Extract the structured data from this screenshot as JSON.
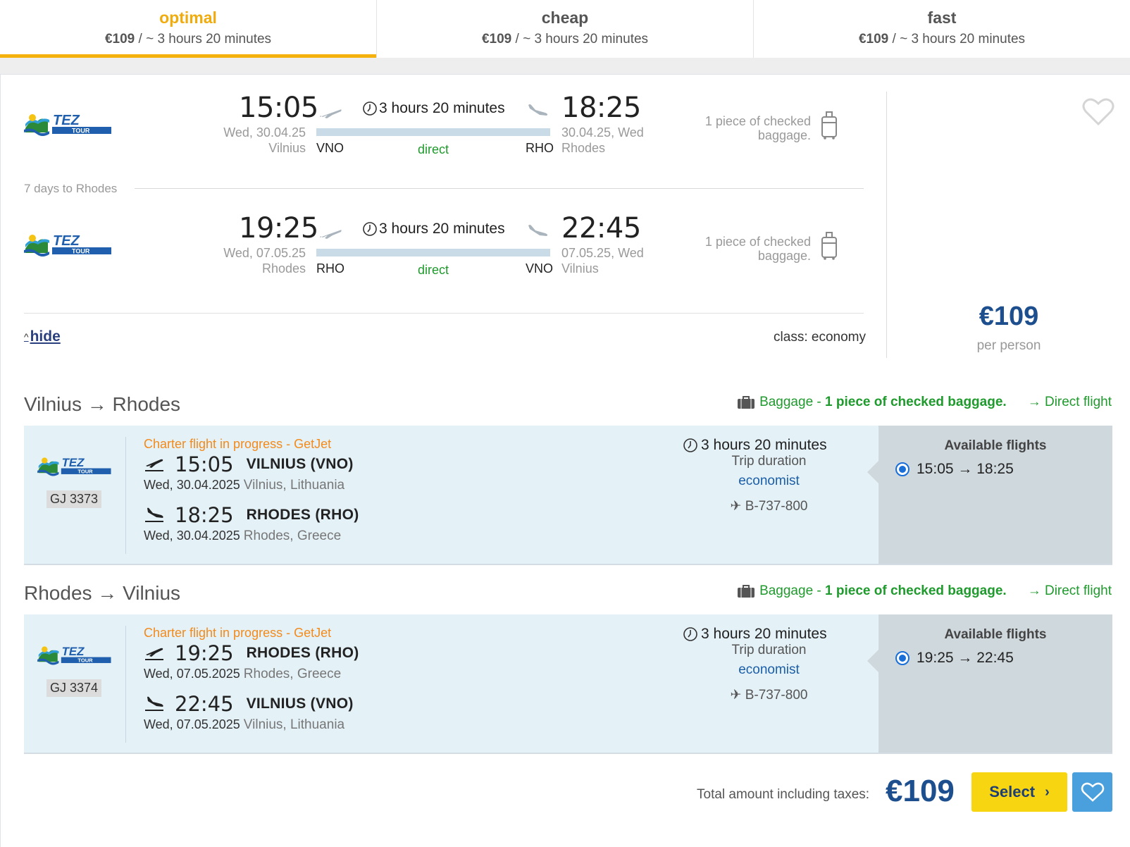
{
  "tabs": [
    {
      "title": "optimal",
      "price": "€109",
      "duration": " / ~ 3 hours 20 minutes"
    },
    {
      "title": "cheap",
      "price": "€109",
      "duration": " / ~ 3 hours 20 minutes"
    },
    {
      "title": "fast",
      "price": "€109",
      "duration": " / ~ 3 hours 20 minutes"
    }
  ],
  "summary": {
    "outbound": {
      "dep_time": "15:05",
      "dep_date": "Wed, 30.04.25",
      "dep_city": "Vilnius",
      "dep_code": "VNO",
      "duration": "3 hours 20 minutes",
      "stops": "direct",
      "arr_time": "18:25",
      "arr_date": "30.04.25, Wed",
      "arr_city": "Rhodes",
      "arr_code": "RHO",
      "baggage": "1 piece of checked baggage."
    },
    "stay": "7 days to Rhodes",
    "inbound": {
      "dep_time": "19:25",
      "dep_date": "Wed, 07.05.25",
      "dep_city": "Rhodes",
      "dep_code": "RHO",
      "duration": "3 hours 20 minutes",
      "stops": "direct",
      "arr_time": "22:45",
      "arr_date": "07.05.25, Wed",
      "arr_city": "Vilnius",
      "arr_code": "VNO",
      "baggage": "1 piece of checked baggage."
    },
    "hide_label": "hide",
    "class_label": "class: economy",
    "price": "€109",
    "price_note": "per person"
  },
  "details": [
    {
      "route": "Vilnius → Rhodes",
      "baggage_prefix": "Baggage - ",
      "baggage_bold": "1 piece of checked baggage.",
      "direct_label": "→ Direct flight",
      "charter": "Charter flight in progress - GetJet",
      "flight_no": "GJ 3373",
      "dep_time": "15:05",
      "dep_port": "VILNIUS (VNO)",
      "dep_date": "Wed, 30.04.2025",
      "dep_loc": "Vilnius, Lithuania",
      "arr_time": "18:25",
      "arr_port": "RHODES (RHO)",
      "arr_date": "Wed, 30.04.2025",
      "arr_loc": "Rhodes, Greece",
      "duration": "3 hours 20 minutes",
      "duration_label": "Trip duration",
      "class": "economist",
      "aircraft": "✈ B-737-800",
      "avail_title": "Available flights",
      "avail_option": "15:05 → 18:25"
    },
    {
      "route": "Rhodes → Vilnius",
      "baggage_prefix": "Baggage - ",
      "baggage_bold": "1 piece of checked baggage.",
      "direct_label": "→ Direct flight",
      "charter": "Charter flight in progress - GetJet",
      "flight_no": "GJ 3374",
      "dep_time": "19:25",
      "dep_port": "RHODES (RHO)",
      "dep_date": "Wed, 07.05.2025",
      "dep_loc": "Rhodes, Greece",
      "arr_time": "22:45",
      "arr_port": "VILNIUS (VNO)",
      "arr_date": "Wed, 07.05.2025",
      "arr_loc": "Vilnius, Lithuania",
      "duration": "3 hours 20 minutes",
      "duration_label": "Trip duration",
      "class": "economist",
      "aircraft": "✈ B-737-800",
      "avail_title": "Available flights",
      "avail_option": "19:25 → 22:45"
    }
  ],
  "footer": {
    "total_label": "Total amount including taxes:",
    "total_price": "€109",
    "select_label": "Select"
  },
  "airline_logo_text": "TEZ TOUR",
  "colors": {
    "accent": "#f5b10d",
    "price": "#1d4e8e",
    "direct_green": "#1f9a2d",
    "charter_orange": "#f28a1c",
    "detail_bg": "#e4f1f7",
    "select_button": "#f8d511",
    "favorite_button": "#4aa0dc"
  }
}
